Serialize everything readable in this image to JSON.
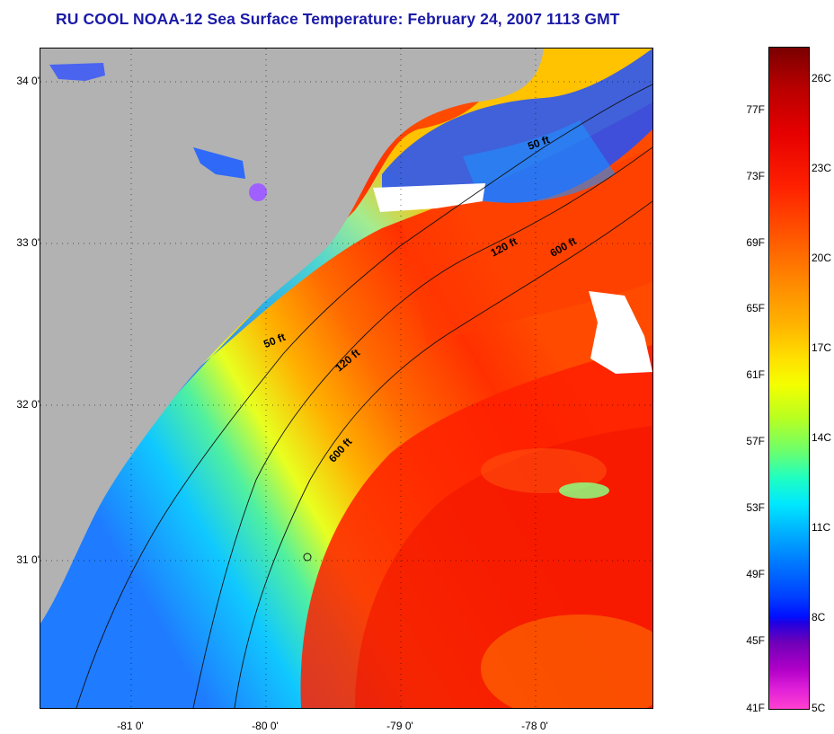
{
  "title": "RU COOL  NOAA-12  Sea Surface Temperature:  February 24, 2007 1113 GMT",
  "axes": {
    "lat_labels": [
      "34 0'",
      "33 0'",
      "32 0'",
      "31 0'"
    ],
    "lon_labels": [
      "-81 0'",
      "-80 0'",
      "-79 0'",
      "-78 0'"
    ]
  },
  "contours": {
    "upper_50": "50 ft",
    "mid_50": "50 ft",
    "upper_120": "120 ft",
    "mid_120": "120 ft",
    "upper_600": "600 ft",
    "lower_600": "600 ft"
  },
  "colorbar": {
    "fahrenheit": [
      "77F",
      "73F",
      "69F",
      "65F",
      "61F",
      "57F",
      "53F",
      "49F",
      "45F",
      "41F"
    ],
    "celsius": [
      "26C",
      "23C",
      "20C",
      "17C",
      "14C",
      "11C",
      "8C",
      "5C"
    ]
  },
  "colors": {
    "land": "#b2b2b2",
    "title": "#1a1aa8",
    "cloud": "#ffffff"
  }
}
